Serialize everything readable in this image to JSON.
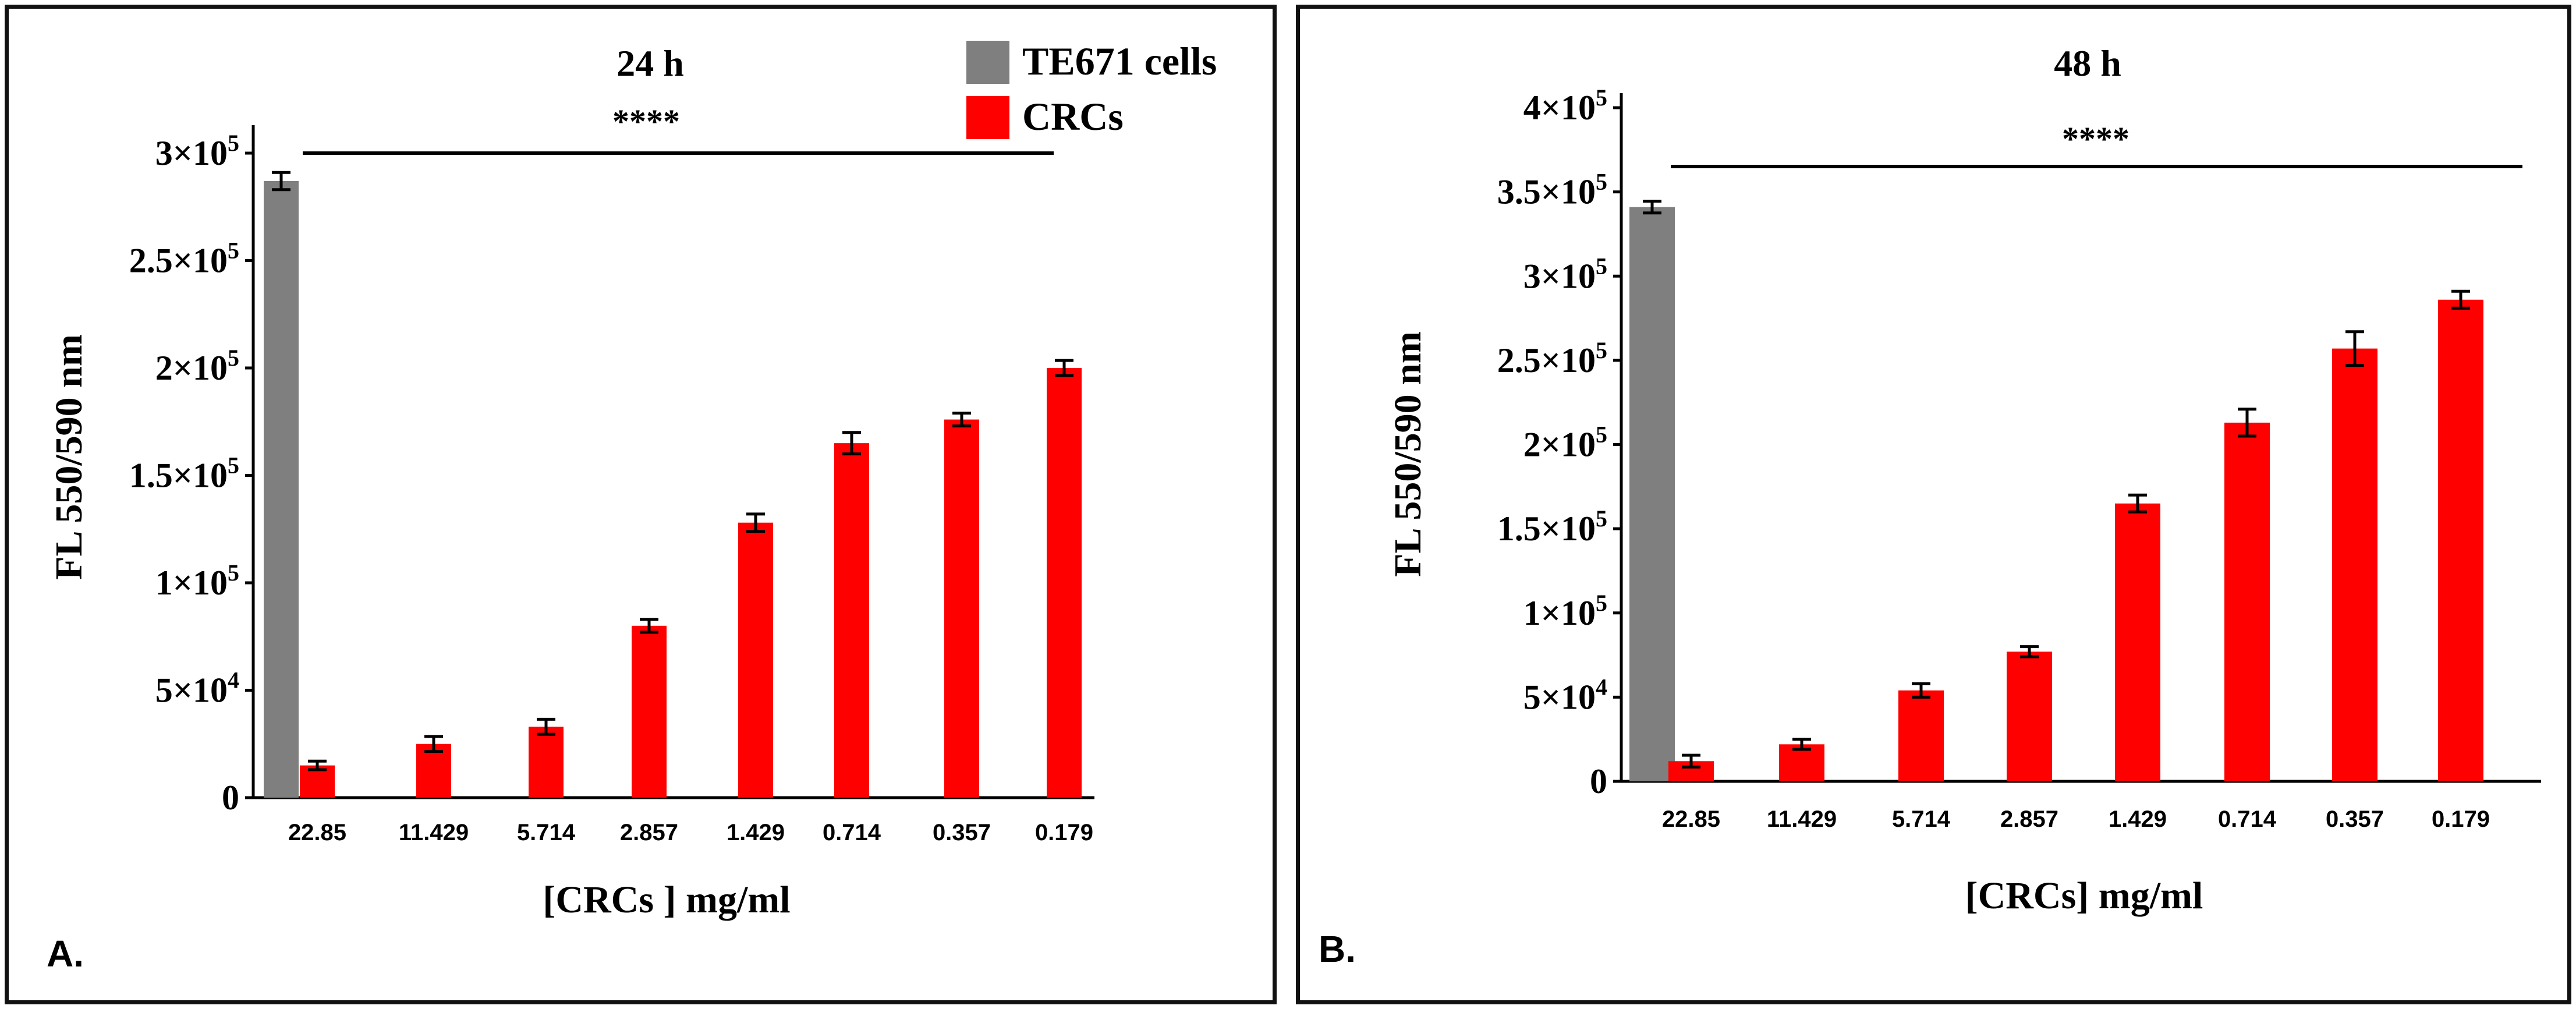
{
  "colors": {
    "control": "#7f7f7f",
    "treated": "#ff0000",
    "axis": "#000000"
  },
  "legend": {
    "items": [
      {
        "label": "TE671 cells",
        "color": "#7f7f7f"
      },
      {
        "label": "CRCs",
        "color": "#ff0000"
      }
    ]
  },
  "chart_data": [
    {
      "type": "bar",
      "panel_label": "A.",
      "title": "24 h",
      "xlabel": "[CRCs ] mg/ml",
      "ylabel": "FL 550/590 nm",
      "ylim": [
        0,
        300000
      ],
      "yticks": [
        {
          "mant": "0",
          "exp": ""
        },
        {
          "mant": "5×10",
          "exp": "4"
        },
        {
          "mant": "1×10",
          "exp": "5"
        },
        {
          "mant": "1.5×10",
          "exp": "5"
        },
        {
          "mant": "2×10",
          "exp": "5"
        },
        {
          "mant": "2.5×10",
          "exp": "5"
        },
        {
          "mant": "3×10",
          "exp": "5"
        }
      ],
      "ytick_values": [
        0,
        50000,
        100000,
        150000,
        200000,
        250000,
        300000
      ],
      "significance": "****",
      "control": {
        "name": "TE671 cells",
        "value": 287000,
        "error": 4000
      },
      "categories": [
        "22.85",
        "11.429",
        "5.714",
        "2.857",
        "1.429",
        "0.714",
        "0.357",
        "0.179"
      ],
      "series": [
        {
          "name": "CRCs",
          "values": [
            15000,
            25000,
            33000,
            80000,
            128000,
            165000,
            176000,
            200000
          ],
          "errors": [
            2000,
            3500,
            3500,
            3000,
            4000,
            5000,
            3000,
            3500
          ]
        }
      ]
    },
    {
      "type": "bar",
      "panel_label": "B.",
      "title": "48 h",
      "xlabel": "[CRCs] mg/ml",
      "ylabel": "FL 550/590 nm",
      "ylim": [
        0,
        400000
      ],
      "yticks": [
        {
          "mant": "0",
          "exp": ""
        },
        {
          "mant": "5×10",
          "exp": "4"
        },
        {
          "mant": "1×10",
          "exp": "5"
        },
        {
          "mant": "1.5×10",
          "exp": "5"
        },
        {
          "mant": "2×10",
          "exp": "5"
        },
        {
          "mant": "2.5×10",
          "exp": "5"
        },
        {
          "mant": "3×10",
          "exp": "5"
        },
        {
          "mant": "3.5×10",
          "exp": "5"
        },
        {
          "mant": "4×10",
          "exp": "5"
        }
      ],
      "ytick_values": [
        0,
        50000,
        100000,
        150000,
        200000,
        250000,
        300000,
        350000,
        400000
      ],
      "significance": "****",
      "control": {
        "name": "TE671 cells",
        "value": 341000,
        "error": 3500
      },
      "categories": [
        "22.85",
        "11.429",
        "5.714",
        "2.857",
        "1.429",
        "0.714",
        "0.357",
        "0.179"
      ],
      "series": [
        {
          "name": "CRCs",
          "values": [
            12000,
            22000,
            54000,
            77000,
            165000,
            213000,
            257000,
            286000
          ],
          "errors": [
            3500,
            3000,
            4000,
            3000,
            5000,
            8000,
            10000,
            5000
          ]
        }
      ]
    }
  ]
}
